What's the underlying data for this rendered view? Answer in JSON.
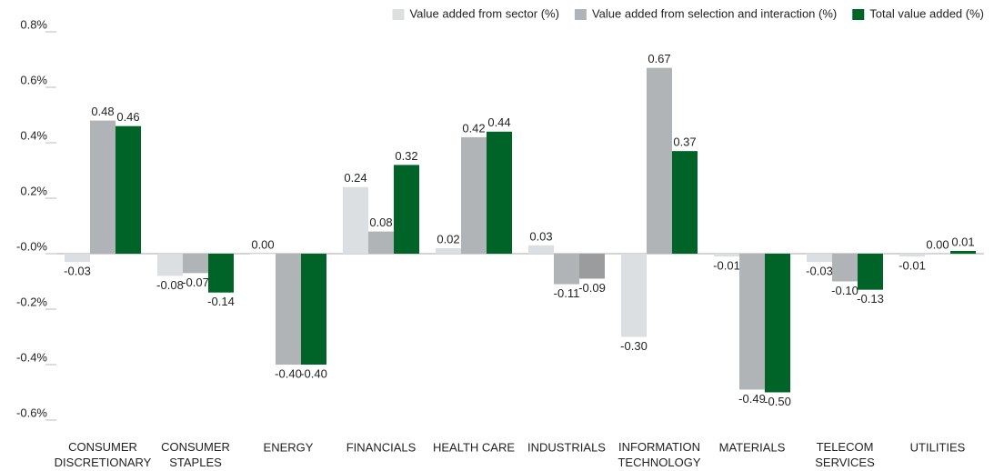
{
  "chart_data": {
    "type": "bar",
    "categories": [
      "CONSUMER\nDISCRETIONARY",
      "CONSUMER\nSTAPLES",
      "ENERGY",
      "FINANCIALS",
      "HEALTH CARE",
      "INDUSTRIALS",
      "INFORMATION\nTECHNOLOGY",
      "MATERIALS",
      "TELECOM\nSERVICES",
      "UTILITIES"
    ],
    "series": [
      {
        "name": "Value added from sector (%)",
        "color": "#dcdfe1",
        "values": [
          -0.03,
          -0.08,
          0.0,
          0.24,
          0.02,
          0.03,
          -0.3,
          -0.01,
          -0.03,
          -0.01
        ],
        "value_labels": [
          "-0.03",
          "-0.08",
          "0.00",
          "0.24",
          "0.02",
          "0.03",
          "-0.30",
          "-0.01",
          "-0.03",
          "-0.01"
        ]
      },
      {
        "name": "Value added from selection and interaction (%)",
        "color": "#b1b4b7",
        "values": [
          0.48,
          -0.07,
          -0.4,
          0.08,
          0.42,
          -0.11,
          0.67,
          -0.49,
          -0.1,
          0.0
        ],
        "value_labels": [
          "0.48",
          "-0.07",
          "-0.40",
          "0.08",
          "0.42",
          "-0.11",
          "0.67",
          "-0.49",
          "-0.10",
          "0.00"
        ]
      },
      {
        "name": "Total value added (%)",
        "color": "#006428",
        "colors": [
          "#006428",
          "#006428",
          "#006428",
          "#006428",
          "#006428",
          "#9a9c9e",
          "#006428",
          "#006428",
          "#006428",
          "#006428"
        ],
        "values": [
          0.46,
          -0.14,
          -0.4,
          0.32,
          0.44,
          -0.09,
          0.37,
          -0.5,
          -0.13,
          0.01
        ],
        "value_labels": [
          "0.46",
          "-0.14",
          "-0.40",
          "0.32",
          "0.44",
          "-0.09",
          "0.37",
          "-0.50",
          "-0.13",
          "0.01"
        ]
      }
    ],
    "ylim": [
      -0.6,
      0.8
    ],
    "yticks": [
      {
        "value": -0.6,
        "label": "-0.6%"
      },
      {
        "value": -0.4,
        "label": "-0.4%"
      },
      {
        "value": -0.2,
        "label": "-0.2%"
      },
      {
        "value": 0,
        "label": "-0.0%"
      },
      {
        "value": 0.2,
        "label": "0.2%"
      },
      {
        "value": 0.4,
        "label": "0.4%"
      },
      {
        "value": 0.6,
        "label": "0.6%"
      },
      {
        "value": 0.8,
        "label": "0.8%"
      }
    ],
    "legend": "top-right"
  }
}
